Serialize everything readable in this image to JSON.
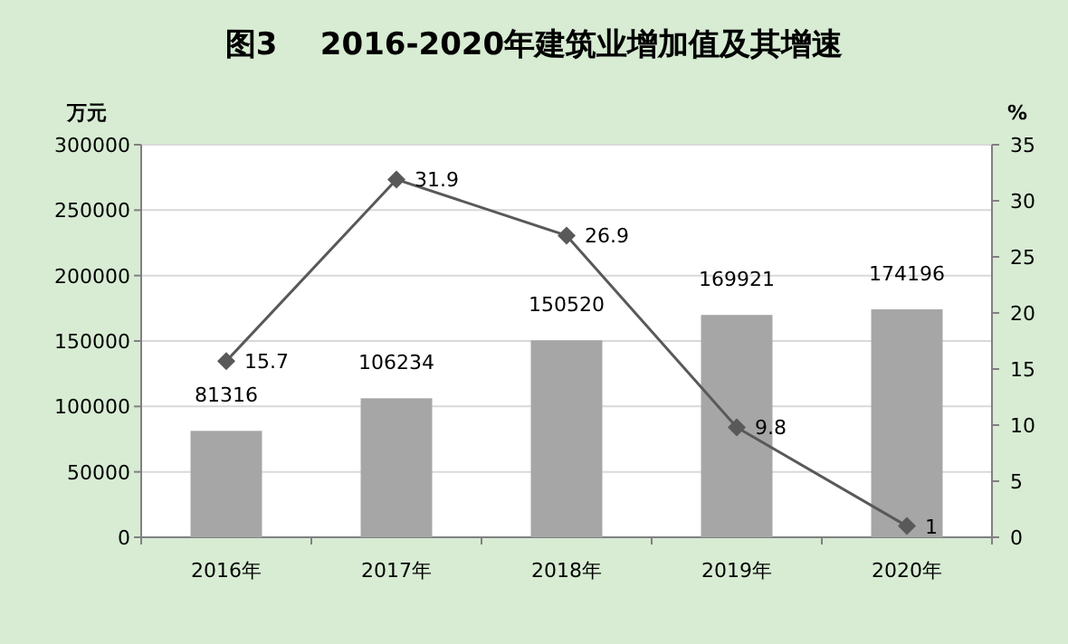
{
  "chart_data": {
    "type": "bar",
    "title": "图3    2016-2020年建筑业增加值及其增速",
    "ylabel": "万元",
    "y2label": "%",
    "categories": [
      "2016年",
      "2017年",
      "2018年",
      "2019年",
      "2020年"
    ],
    "series": [
      {
        "color": "#a6a6a6",
        "values": [
          81316,
          106234,
          150520,
          169921,
          174196
        ]
      },
      {
        "type": "line",
        "axis": "y2",
        "color": "#595959",
        "marker": "diamond",
        "values": [
          15.7,
          31.9,
          26.9,
          9.8,
          1
        ]
      }
    ],
    "ylim": [
      0,
      300000
    ],
    "yticks": [
      0,
      50000,
      100000,
      150000,
      200000,
      250000,
      300000
    ],
    "y2lim": [
      0,
      35
    ],
    "y2ticks": [
      0,
      5,
      10,
      15,
      20,
      25,
      30,
      35
    ],
    "grid": "y",
    "data_labels": true
  }
}
